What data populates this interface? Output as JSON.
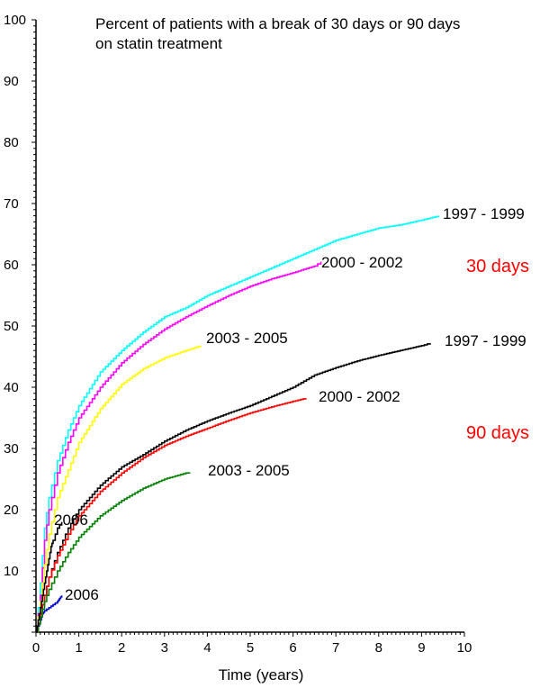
{
  "chart_data": {
    "type": "line",
    "title_lines": [
      "Percent of patients with a break of 30 days or 90 days",
      "on statin treatment"
    ],
    "xlabel": "Time (years)",
    "ylabel": "",
    "xlim": [
      0,
      10
    ],
    "ylim": [
      0,
      100
    ],
    "x_ticks": [
      0,
      1,
      2,
      3,
      4,
      5,
      6,
      7,
      8,
      9,
      10
    ],
    "y_ticks": [
      10,
      20,
      30,
      40,
      50,
      60,
      70,
      80,
      90,
      100
    ],
    "grid": false,
    "groups": [
      {
        "label": "30 days",
        "color": "#ff0000"
      },
      {
        "label": "90 days",
        "color": "#ff0000"
      }
    ],
    "series": [
      {
        "name": "1997 - 1999",
        "group": "30 days",
        "color": "#00ffff",
        "x": [
          0,
          0.1,
          0.2,
          0.3,
          0.5,
          0.75,
          1,
          1.5,
          2,
          2.5,
          3,
          3.5,
          4,
          4.5,
          5,
          5.5,
          6,
          6.5,
          7,
          7.5,
          8,
          8.5,
          9,
          9.4
        ],
        "y": [
          0,
          8,
          17,
          22,
          28,
          33,
          37,
          42.5,
          46,
          49,
          51.5,
          53,
          55,
          56.5,
          58,
          59.5,
          61,
          62.5,
          64,
          65,
          66,
          66.5,
          67.3,
          68
        ]
      },
      {
        "name": "2000 - 2002",
        "group": "30 days",
        "color": "#ff00ff",
        "x": [
          0,
          0.1,
          0.2,
          0.3,
          0.5,
          0.75,
          1,
          1.5,
          2,
          2.5,
          3,
          3.5,
          4,
          4.5,
          5,
          5.5,
          6,
          6.5,
          6.65
        ],
        "y": [
          0,
          6,
          15,
          20,
          26,
          31,
          35,
          40,
          44,
          47,
          49.5,
          51.5,
          53.3,
          55,
          56.5,
          57.7,
          58.7,
          59.8,
          60.5
        ]
      },
      {
        "name": "2003 - 2005",
        "group": "30 days",
        "color": "#ffff00",
        "x": [
          0,
          0.1,
          0.2,
          0.3,
          0.5,
          0.75,
          1,
          1.5,
          2,
          2.5,
          3,
          3.5,
          3.85
        ],
        "y": [
          0,
          5,
          11,
          16,
          22,
          26.5,
          31,
          36.5,
          40.5,
          43,
          44.8,
          46,
          46.8
        ]
      },
      {
        "name": "2006",
        "group": "30 days",
        "color": "#0000cc",
        "x": [
          0,
          0.05,
          0.1,
          0.15,
          0.2,
          0.3,
          0.4,
          0.5,
          0.55,
          0.6
        ],
        "y": [
          0,
          1,
          2,
          3,
          3.5,
          4,
          4.5,
          5,
          5.5,
          6
        ]
      },
      {
        "name": "1997 - 1999",
        "group": "90 days",
        "color": "#000000",
        "x": [
          0,
          0.1,
          0.2,
          0.3,
          0.5,
          0.75,
          1,
          1.5,
          2,
          2.5,
          3,
          3.5,
          4,
          4.5,
          5,
          5.5,
          6,
          6.5,
          7,
          7.5,
          8,
          8.5,
          9,
          9.2
        ],
        "y": [
          0,
          3,
          6,
          9,
          13,
          17,
          20,
          24,
          27,
          29,
          31.2,
          33,
          34.5,
          35.8,
          37,
          38.5,
          40,
          42,
          43.2,
          44.3,
          45.2,
          46,
          46.8,
          47.2
        ]
      },
      {
        "name": "2000 - 2002",
        "group": "90 days",
        "color": "#ff0000",
        "x": [
          0,
          0.1,
          0.2,
          0.3,
          0.5,
          0.75,
          1,
          1.5,
          2,
          2.5,
          3,
          3.5,
          4,
          4.5,
          5,
          5.5,
          6,
          6.3
        ],
        "y": [
          0,
          3,
          6,
          9,
          12.5,
          16,
          19,
          23,
          26,
          28.5,
          30.5,
          32,
          33.3,
          34.6,
          35.8,
          36.8,
          37.7,
          38.2
        ]
      },
      {
        "name": "2003 - 2005",
        "group": "90 days",
        "color": "#008000",
        "x": [
          0,
          0.1,
          0.2,
          0.3,
          0.5,
          0.75,
          1,
          1.5,
          2,
          2.5,
          3,
          3.5,
          3.6
        ],
        "y": [
          0,
          2.5,
          5,
          7,
          10,
          13,
          15.5,
          19,
          21.5,
          23.5,
          25,
          26,
          26
        ]
      },
      {
        "name": "2006",
        "group": "90 days",
        "color": "#000000",
        "x": [
          0,
          0.05,
          0.1,
          0.15,
          0.2,
          0.25,
          0.3,
          0.35,
          0.4,
          0.5,
          0.6
        ],
        "y": [
          0,
          2,
          4,
          6,
          8,
          10,
          12,
          14,
          15,
          17,
          18
        ]
      }
    ]
  }
}
